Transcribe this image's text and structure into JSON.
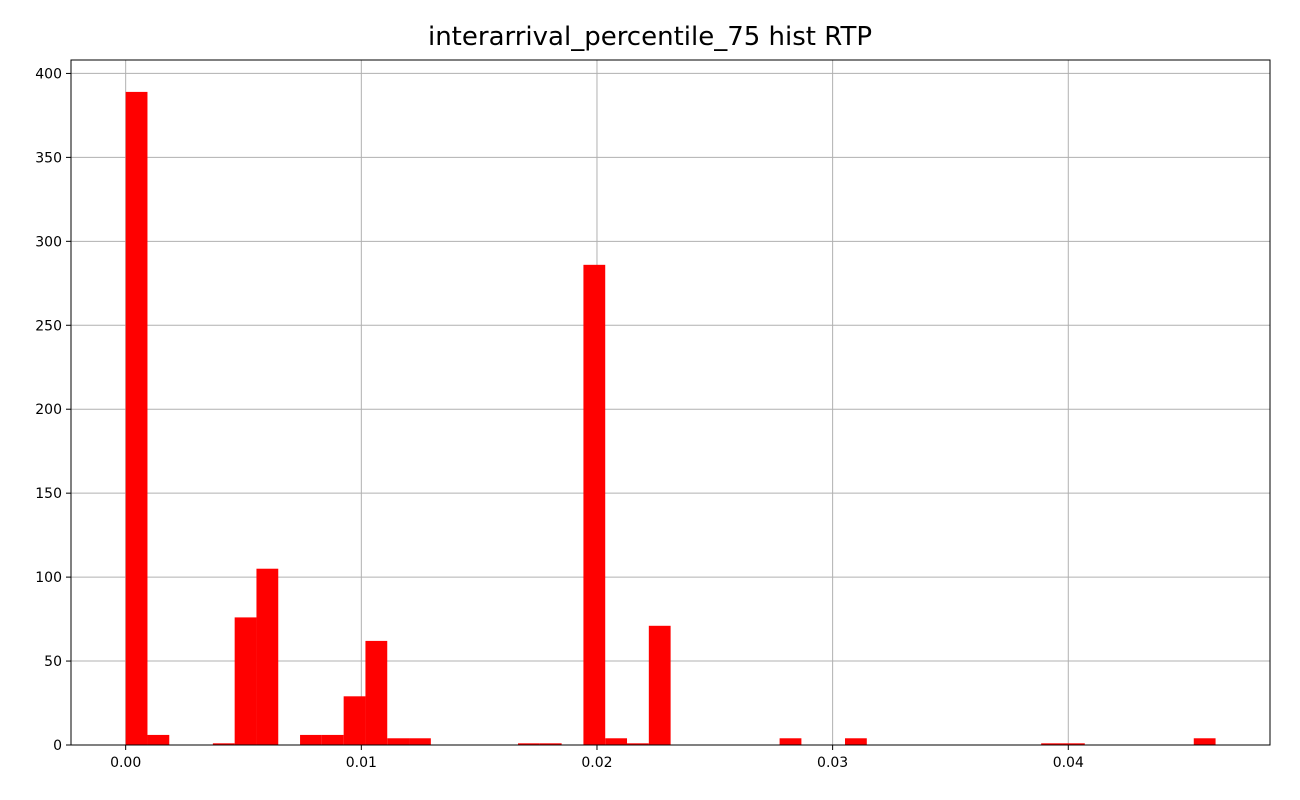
{
  "chart_data": {
    "type": "bar",
    "title": "interarrival_percentile_75 hist RTP",
    "xlabel": "",
    "ylabel": "",
    "xlim": [
      -0.00232,
      0.04856
    ],
    "ylim": [
      0,
      408
    ],
    "xticks": [
      0.0,
      0.01,
      0.02,
      0.03,
      0.04
    ],
    "xtick_labels": [
      "0.00",
      "0.01",
      "0.02",
      "0.03",
      "0.04"
    ],
    "yticks": [
      0,
      50,
      100,
      150,
      200,
      250,
      300,
      350,
      400
    ],
    "ytick_labels": [
      "0",
      "50",
      "100",
      "150",
      "200",
      "250",
      "300",
      "350",
      "400"
    ],
    "grid": true,
    "bar_color": "#ff0000",
    "bin_start": 0.0,
    "bin_width": 0.000925,
    "bins": [
      {
        "bin": 0,
        "count": 389
      },
      {
        "bin": 1,
        "count": 6
      },
      {
        "bin": 4,
        "count": 1
      },
      {
        "bin": 5,
        "count": 76
      },
      {
        "bin": 6,
        "count": 105
      },
      {
        "bin": 8,
        "count": 6
      },
      {
        "bin": 9,
        "count": 6
      },
      {
        "bin": 10,
        "count": 29
      },
      {
        "bin": 11,
        "count": 62
      },
      {
        "bin": 12,
        "count": 4
      },
      {
        "bin": 13,
        "count": 4
      },
      {
        "bin": 18,
        "count": 1
      },
      {
        "bin": 19,
        "count": 1
      },
      {
        "bin": 21,
        "count": 286
      },
      {
        "bin": 22,
        "count": 4
      },
      {
        "bin": 23,
        "count": 1
      },
      {
        "bin": 24,
        "count": 71
      },
      {
        "bin": 30,
        "count": 4
      },
      {
        "bin": 33,
        "count": 4
      },
      {
        "bin": 42,
        "count": 1
      },
      {
        "bin": 43,
        "count": 1
      },
      {
        "bin": 49,
        "count": 4
      }
    ]
  }
}
